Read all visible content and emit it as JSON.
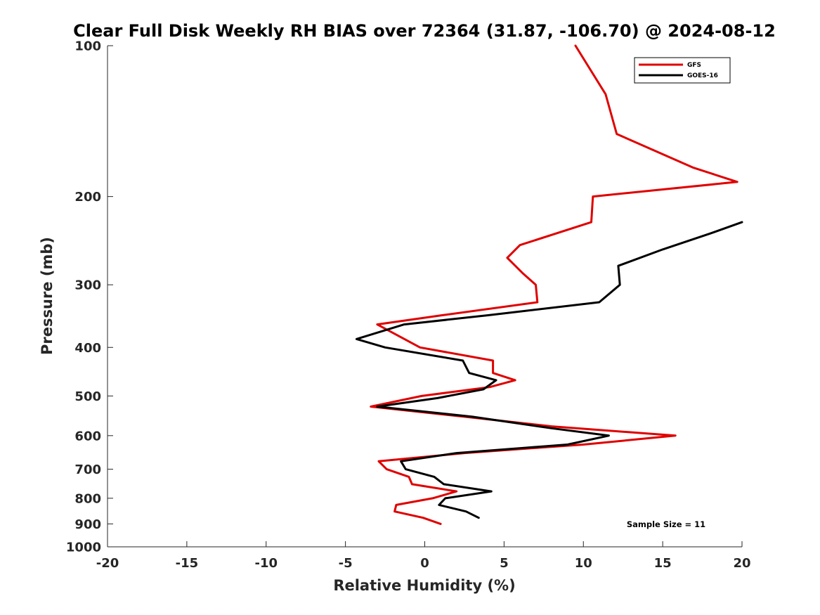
{
  "chart_data": {
    "type": "line",
    "title": "Clear Full Disk Weekly RH BIAS over 72364 (31.87, -106.70) @ 2024-08-12",
    "xlabel": "Relative Humidity (%)",
    "ylabel": "Pressure (mb)",
    "xlim": [
      -20,
      20
    ],
    "ylim": [
      1000,
      100
    ],
    "y_scale": "log",
    "y_reversed": true,
    "xticks": [
      -20,
      -15,
      -10,
      -5,
      0,
      5,
      10,
      15,
      20
    ],
    "yticks": [
      100,
      200,
      300,
      400,
      500,
      600,
      700,
      800,
      900,
      1000
    ],
    "grid": false,
    "legend_position": "top-right",
    "series": [
      {
        "name": "GFS",
        "color": "#e00000",
        "points": [
          [
            9.5,
            100
          ],
          [
            11.4,
            125
          ],
          [
            12.1,
            150
          ],
          [
            16.9,
            175
          ],
          [
            19.7,
            187
          ],
          [
            10.6,
            200
          ],
          [
            10.5,
            225
          ],
          [
            6.0,
            250
          ],
          [
            5.2,
            265
          ],
          [
            6.2,
            285
          ],
          [
            7.0,
            300
          ],
          [
            7.1,
            325
          ],
          [
            1.1,
            345
          ],
          [
            -3.0,
            360
          ],
          [
            -0.3,
            400
          ],
          [
            4.3,
            425
          ],
          [
            4.3,
            450
          ],
          [
            5.7,
            465
          ],
          [
            4.1,
            480
          ],
          [
            -0.2,
            500
          ],
          [
            -3.4,
            525
          ],
          [
            2.5,
            550
          ],
          [
            8.0,
            575
          ],
          [
            15.8,
            600
          ],
          [
            10.0,
            625
          ],
          [
            2.5,
            650
          ],
          [
            -2.9,
            675
          ],
          [
            -2.4,
            700
          ],
          [
            -1.0,
            725
          ],
          [
            -0.8,
            750
          ],
          [
            2.0,
            775
          ],
          [
            0.5,
            800
          ],
          [
            -1.8,
            825
          ],
          [
            -1.9,
            850
          ],
          [
            -0.1,
            875
          ],
          [
            1.0,
            900
          ]
        ]
      },
      {
        "name": "GOES-16",
        "color": "#000000",
        "points": [
          [
            20.0,
            225
          ],
          [
            18.0,
            237
          ],
          [
            15.0,
            255
          ],
          [
            12.2,
            275
          ],
          [
            12.3,
            300
          ],
          [
            11.0,
            325
          ],
          [
            4.0,
            345
          ],
          [
            -1.3,
            360
          ],
          [
            -4.3,
            385
          ],
          [
            -2.5,
            400
          ],
          [
            2.4,
            425
          ],
          [
            2.8,
            450
          ],
          [
            4.5,
            465
          ],
          [
            3.7,
            485
          ],
          [
            0.8,
            505
          ],
          [
            -3.0,
            525
          ],
          [
            3.0,
            550
          ],
          [
            8.0,
            580
          ],
          [
            11.6,
            600
          ],
          [
            9.0,
            625
          ],
          [
            2.0,
            650
          ],
          [
            -1.5,
            675
          ],
          [
            -1.2,
            700
          ],
          [
            0.6,
            725
          ],
          [
            1.2,
            750
          ],
          [
            4.2,
            775
          ],
          [
            1.3,
            800
          ],
          [
            0.9,
            825
          ],
          [
            2.6,
            850
          ],
          [
            3.4,
            875
          ]
        ]
      }
    ],
    "annotation": "Sample Size = 11"
  }
}
